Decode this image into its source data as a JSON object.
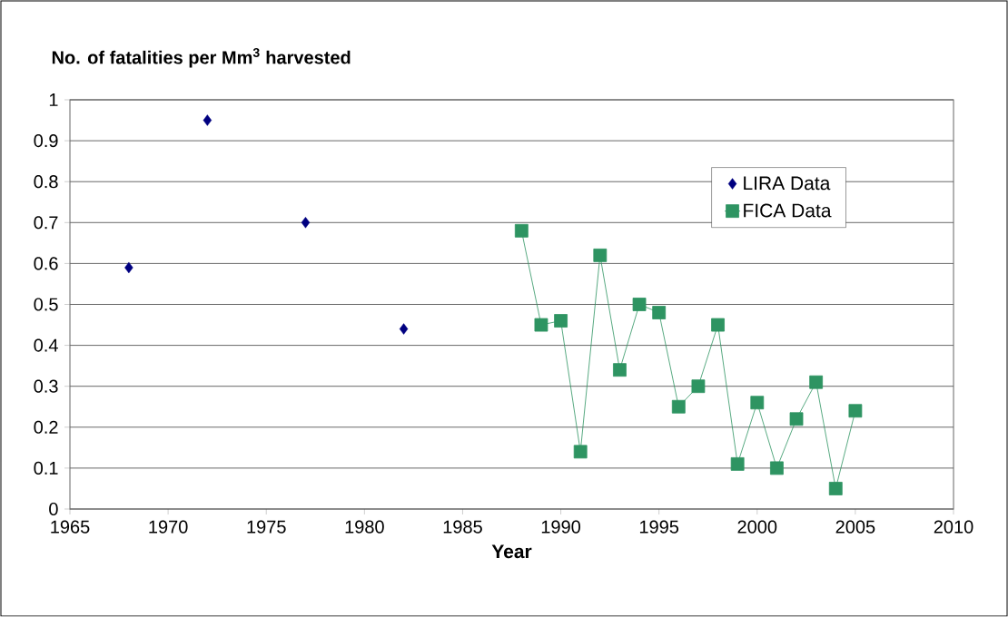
{
  "chart_data": {
    "type": "scatter",
    "ylabel": "No. of fatalities per Mm$^{3}$ harvested",
    "xlabel": "Year",
    "xlim": [
      1965,
      2010
    ],
    "xticks": [
      1965,
      1970,
      1975,
      1980,
      1985,
      1990,
      1995,
      2000,
      2005,
      2010
    ],
    "ylim": [
      0,
      1
    ],
    "yticks": [
      0,
      0.1,
      0.2,
      0.3,
      0.4,
      0.5,
      0.6,
      0.7,
      0.8,
      0.9,
      1
    ],
    "grid": "y",
    "legend": "top right",
    "series": [
      {
        "name": "LIRA Data",
        "marker": "diamond",
        "color": "#000080",
        "x": [
          1968,
          1972,
          1977,
          1982
        ],
        "values": [
          0.59,
          0.95,
          0.7,
          0.44
        ]
      },
      {
        "name": "FICA Data",
        "type": "line",
        "marker": "square",
        "color": "#2e9462",
        "x": [
          1988,
          1989,
          1990,
          1991,
          1992,
          1993,
          1994,
          1995,
          1996,
          1997,
          1998,
          1999,
          2000,
          2001,
          2002,
          2003,
          2004,
          2005
        ],
        "values": [
          0.68,
          0.45,
          0.46,
          0.14,
          0.62,
          0.34,
          0.5,
          0.48,
          0.25,
          0.3,
          0.45,
          0.11,
          0.26,
          0.1,
          0.22,
          0.31,
          0.05,
          0.24
        ]
      }
    ]
  }
}
